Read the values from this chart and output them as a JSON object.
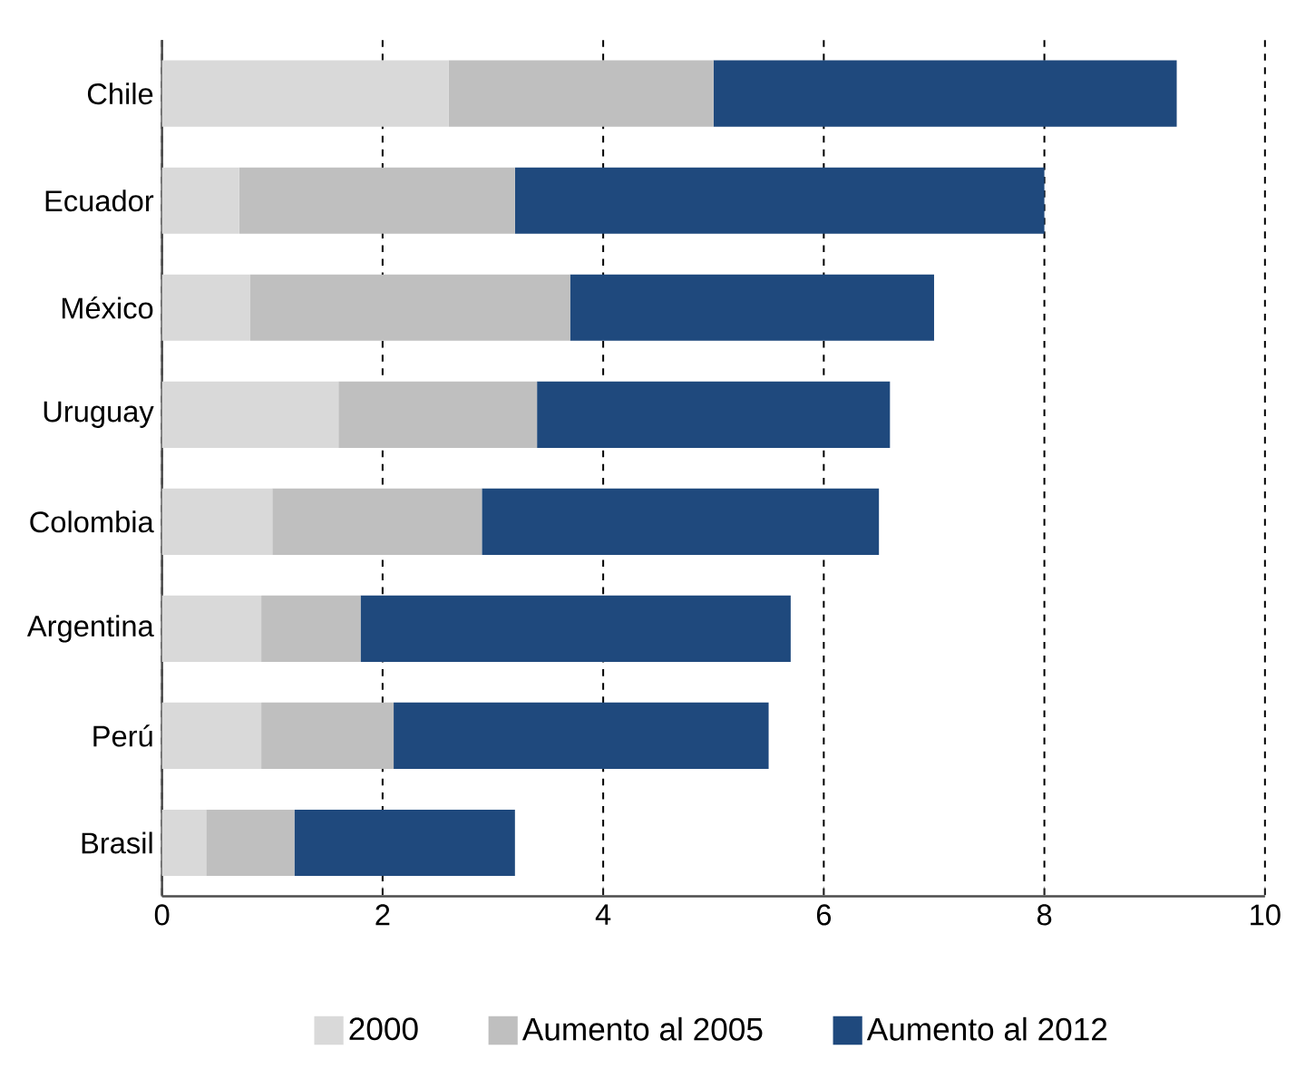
{
  "chart_data": {
    "type": "bar",
    "orientation": "horizontal",
    "stacked": true,
    "categories": [
      "Chile",
      "Ecuador",
      "México",
      "Uruguay",
      "Colombia",
      "Argentina",
      "Perú",
      "Brasil"
    ],
    "series": [
      {
        "name": "2000",
        "color": "#d9d9d9",
        "values": [
          2.6,
          0.7,
          0.8,
          1.6,
          1.0,
          0.9,
          0.9,
          0.4
        ]
      },
      {
        "name": "Aumento al 2005",
        "color": "#bfbfbf",
        "values": [
          2.4,
          2.5,
          2.9,
          1.8,
          1.9,
          0.9,
          1.2,
          0.8
        ]
      },
      {
        "name": "Aumento al 2012",
        "color": "#1f497d",
        "values": [
          4.2,
          4.8,
          3.3,
          3.2,
          3.6,
          3.9,
          3.4,
          2.0
        ]
      }
    ],
    "xlim": [
      0,
      10
    ],
    "xticks": [
      0,
      2,
      4,
      6,
      8,
      10
    ],
    "grid": "x",
    "legend": "bottom"
  }
}
